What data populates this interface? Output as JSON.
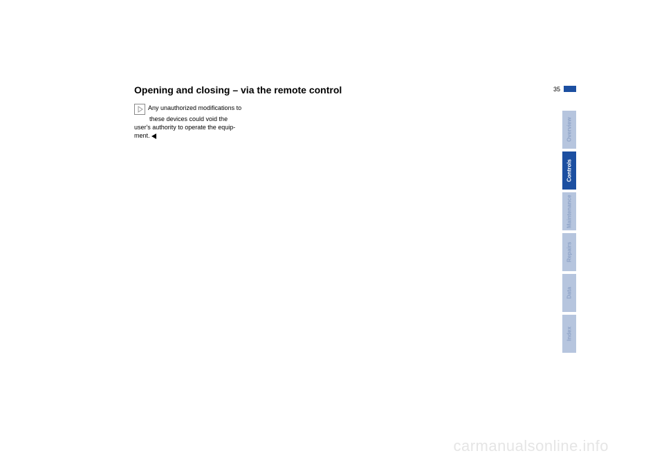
{
  "heading": {
    "text": "Opening and closing – via the remote control",
    "fontsize": 14
  },
  "page_number": {
    "value": "35",
    "fontsize": 9
  },
  "page_marker": {
    "color": "#1c4fa1",
    "width": 18,
    "height": 9
  },
  "body": {
    "fontsize": 9,
    "line1": "Any unauthorized modifications to",
    "line2": "these devices could void the",
    "rest": "user's authority to operate the equip-",
    "last": "ment."
  },
  "warning_icon": {
    "border_color": "#999999",
    "arrow_color": "#999999"
  },
  "tabs": {
    "fontsize": 8,
    "width": 20,
    "height": 55,
    "gap": 4,
    "inactive_bg": "#b6c5de",
    "inactive_text": "#8ea3c7",
    "active_bg": "#1c4fa1",
    "active_text": "#ffffff",
    "items": [
      {
        "label": "Overview",
        "active": false
      },
      {
        "label": "Controls",
        "active": true
      },
      {
        "label": "Maintenance",
        "active": false
      },
      {
        "label": "Repairs",
        "active": false
      },
      {
        "label": "Data",
        "active": false
      },
      {
        "label": "Index",
        "active": false
      }
    ]
  },
  "watermark": {
    "text": "carmanualsonline.info",
    "fontsize": 22,
    "color": "#e5e5e5"
  }
}
